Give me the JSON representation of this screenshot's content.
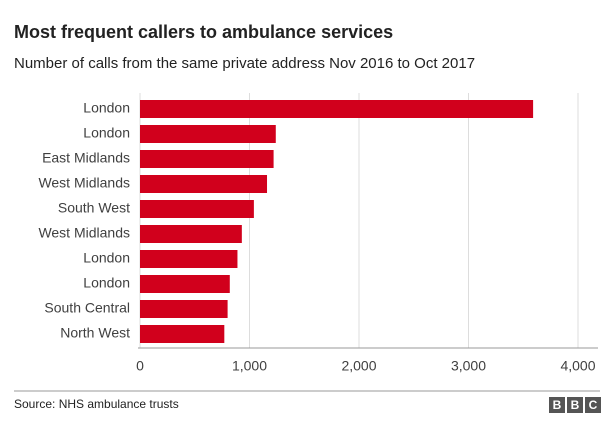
{
  "chart_data": {
    "type": "barh",
    "title": "Most frequent callers to ambulance services",
    "subtitle": "Number of calls from the same private address Nov 2016 to Oct 2017",
    "categories": [
      "London",
      "London",
      "East Midlands",
      "West Midlands",
      "South West",
      "West Midlands",
      "London",
      "London",
      "South Central",
      "North West"
    ],
    "values": [
      3590,
      1240,
      1220,
      1160,
      1040,
      930,
      890,
      820,
      800,
      770
    ],
    "color": "#d1001c",
    "xlim": [
      0,
      4000
    ],
    "xticks": [
      0,
      {
        "value": 1000,
        "label": "1,000"
      },
      {
        "value": 2000,
        "label": "2,000"
      },
      {
        "value": 3000,
        "label": "3,000"
      },
      {
        "value": 4000,
        "label": "4,000"
      }
    ],
    "grid": true,
    "source": "Source: NHS ambulance trusts",
    "logo": [
      "B",
      "B",
      "C"
    ]
  }
}
